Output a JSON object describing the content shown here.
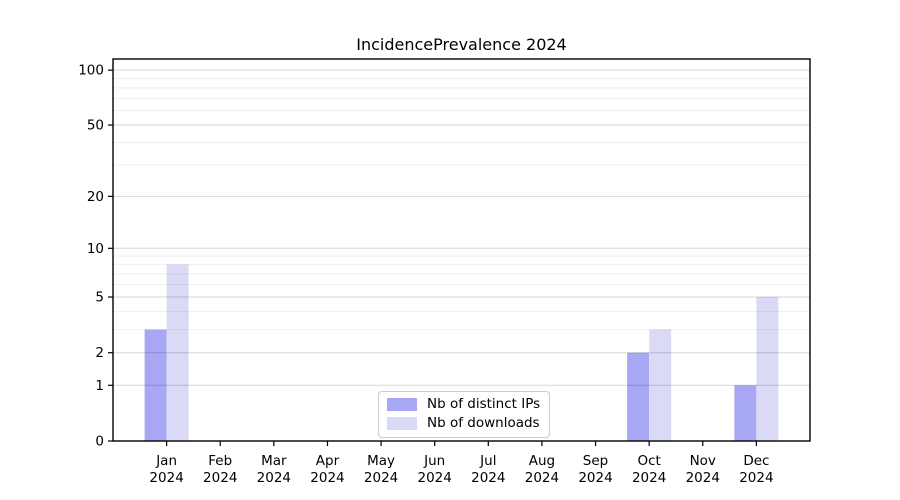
{
  "chart_data": {
    "type": "bar",
    "title": "IncidencePrevalence 2024",
    "xlabel": "",
    "ylabel": "",
    "categories": [
      "Jan",
      "Feb",
      "Mar",
      "Apr",
      "May",
      "Jun",
      "Jul",
      "Aug",
      "Sep",
      "Oct",
      "Nov",
      "Dec"
    ],
    "x_tick_year": "2024",
    "series": [
      {
        "name": "Nb of distinct IPs",
        "key": "distinct-ips",
        "color": "#a7a7f3",
        "values": [
          3,
          0,
          0,
          0,
          0,
          0,
          0,
          0,
          0,
          2,
          0,
          1
        ]
      },
      {
        "name": "Nb of downloads",
        "key": "downloads",
        "color": "#dadaf7",
        "values": [
          8,
          0,
          0,
          0,
          0,
          0,
          0,
          0,
          0,
          3,
          0,
          5
        ]
      }
    ],
    "y_axis": {
      "scale": "log1p",
      "major_ticks": [
        0,
        1,
        2,
        5,
        10,
        20,
        50,
        100
      ],
      "minor_gridlines": [
        3,
        4,
        6,
        7,
        8,
        9,
        30,
        40,
        60,
        70,
        80,
        90
      ],
      "max_value": 115
    },
    "legend": {
      "position": "lower center"
    },
    "grid": "horizontal"
  },
  "colors": {
    "spine": "#000000",
    "tick": "#000000",
    "grid_major": "rgba(0,0,0,0.16)",
    "grid_minor": "rgba(0,0,0,0.07)",
    "background": "#ffffff",
    "legend_border": "#cccccc"
  }
}
